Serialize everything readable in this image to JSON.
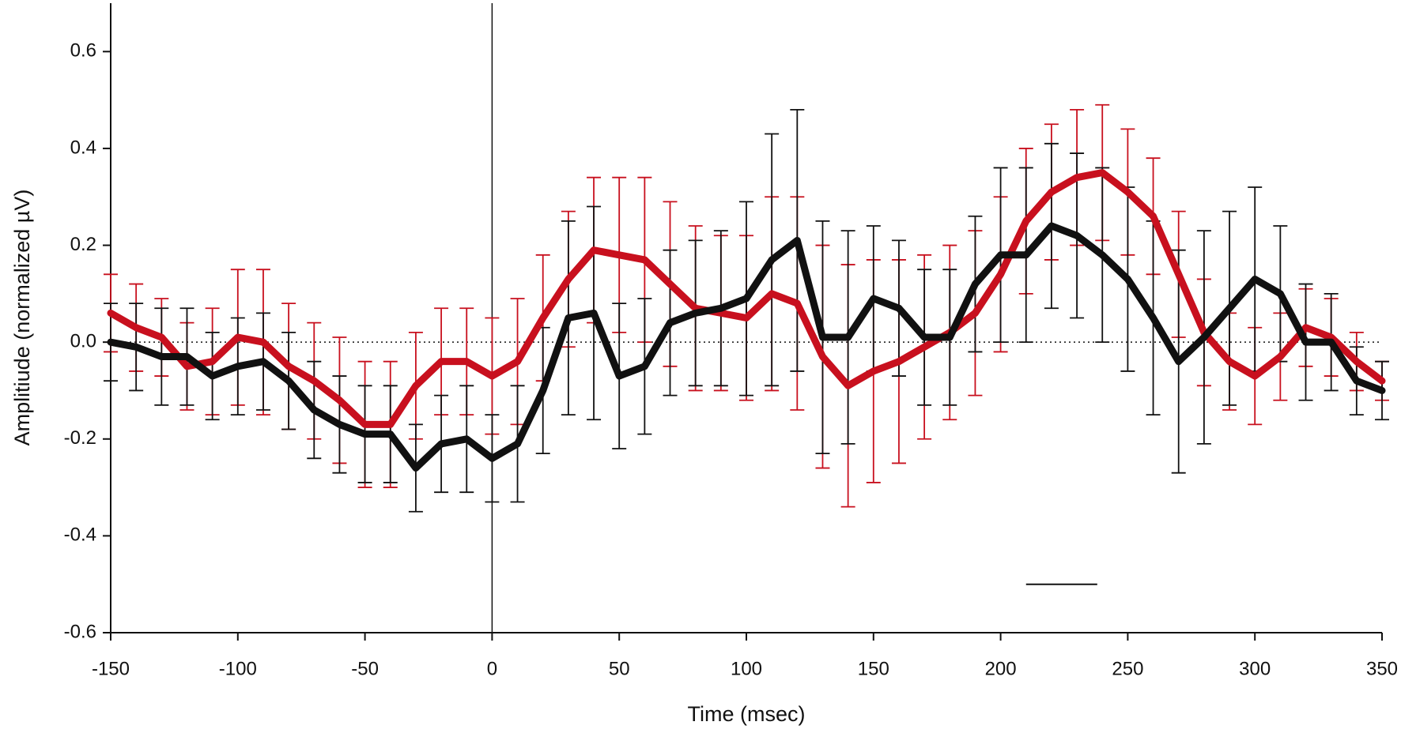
{
  "chart_data": {
    "type": "line",
    "x_label": "Time (msec)",
    "y_label": "Amplitiude (normalized µV)",
    "x": [
      -150,
      -140,
      -130,
      -120,
      -110,
      -100,
      -90,
      -80,
      -70,
      -60,
      -50,
      -40,
      -30,
      -20,
      -10,
      0,
      10,
      20,
      30,
      40,
      50,
      60,
      70,
      80,
      90,
      100,
      110,
      120,
      130,
      140,
      150,
      160,
      170,
      180,
      190,
      200,
      210,
      220,
      230,
      240,
      250,
      260,
      270,
      280,
      290,
      300,
      310,
      320,
      330,
      340,
      350
    ],
    "series": [
      {
        "color": "#c8101e",
        "values": [
          0.06,
          0.03,
          0.01,
          -0.05,
          -0.04,
          0.01,
          0.0,
          -0.05,
          -0.08,
          -0.12,
          -0.17,
          -0.17,
          -0.09,
          -0.04,
          -0.04,
          -0.07,
          -0.04,
          0.05,
          0.13,
          0.19,
          0.18,
          0.17,
          0.12,
          0.07,
          0.06,
          0.05,
          0.1,
          0.08,
          -0.03,
          -0.09,
          -0.06,
          -0.04,
          -0.01,
          0.02,
          0.06,
          0.14,
          0.25,
          0.31,
          0.34,
          0.35,
          0.31,
          0.26,
          0.14,
          0.02,
          -0.04,
          -0.07,
          -0.03,
          0.03,
          0.01,
          -0.04,
          -0.08
        ],
        "errors": [
          0.08,
          0.09,
          0.08,
          0.09,
          0.11,
          0.14,
          0.15,
          0.13,
          0.12,
          0.13,
          0.13,
          0.13,
          0.11,
          0.11,
          0.11,
          0.12,
          0.13,
          0.13,
          0.14,
          0.15,
          0.16,
          0.17,
          0.17,
          0.17,
          0.16,
          0.17,
          0.2,
          0.22,
          0.23,
          0.25,
          0.23,
          0.21,
          0.19,
          0.18,
          0.17,
          0.16,
          0.15,
          0.14,
          0.14,
          0.14,
          0.13,
          0.12,
          0.13,
          0.11,
          0.1,
          0.1,
          0.09,
          0.08,
          0.08,
          0.06,
          0.04
        ]
      },
      {
        "color": "#111111",
        "values": [
          0.0,
          -0.01,
          -0.03,
          -0.03,
          -0.07,
          -0.05,
          -0.04,
          -0.08,
          -0.14,
          -0.17,
          -0.19,
          -0.19,
          -0.26,
          -0.21,
          -0.2,
          -0.24,
          -0.21,
          -0.1,
          0.05,
          0.06,
          -0.07,
          -0.05,
          0.04,
          0.06,
          0.07,
          0.09,
          0.17,
          0.21,
          0.01,
          0.01,
          0.09,
          0.07,
          0.01,
          0.01,
          0.12,
          0.18,
          0.18,
          0.24,
          0.22,
          0.18,
          0.13,
          0.05,
          -0.04,
          0.01,
          0.07,
          0.13,
          0.1,
          0.0,
          0.0,
          -0.08,
          -0.1
        ],
        "errors": [
          0.08,
          0.09,
          0.1,
          0.1,
          0.09,
          0.1,
          0.1,
          0.1,
          0.1,
          0.1,
          0.1,
          0.1,
          0.09,
          0.1,
          0.11,
          0.09,
          0.12,
          0.13,
          0.2,
          0.22,
          0.15,
          0.14,
          0.15,
          0.15,
          0.16,
          0.2,
          0.26,
          0.27,
          0.24,
          0.22,
          0.15,
          0.14,
          0.14,
          0.14,
          0.14,
          0.18,
          0.18,
          0.17,
          0.17,
          0.18,
          0.19,
          0.2,
          0.23,
          0.22,
          0.2,
          0.19,
          0.14,
          0.12,
          0.1,
          0.07,
          0.06
        ]
      }
    ],
    "xlim": [
      -150,
      350
    ],
    "xticks": [
      -150,
      -100,
      -50,
      0,
      50,
      100,
      150,
      200,
      250,
      300,
      350
    ],
    "ylim": [
      -0.6,
      0.7
    ],
    "yticks": [
      -0.6,
      -0.4,
      -0.2,
      {
        "value": 0,
        "label": "0.0"
      },
      0.2,
      0.4,
      0.6
    ],
    "reference_lines": {
      "x": 0,
      "y": 0
    },
    "significance_bar": {
      "x": [
        210,
        238
      ],
      "y": -0.5
    }
  }
}
